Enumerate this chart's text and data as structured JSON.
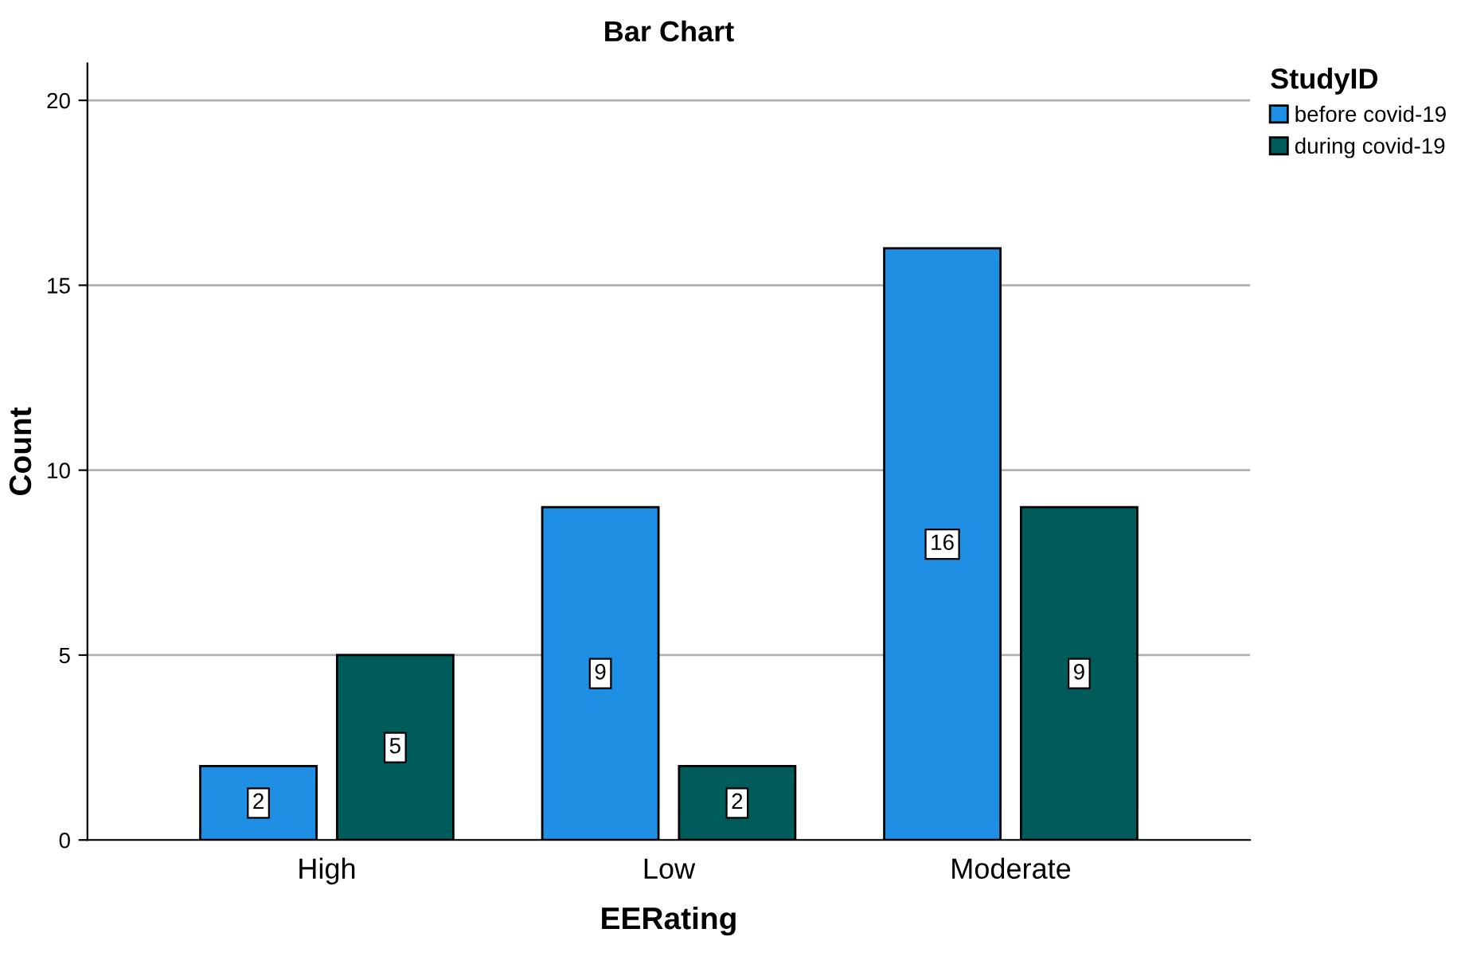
{
  "chart_data": {
    "type": "bar",
    "title": "Bar Chart",
    "xlabel": "EERating",
    "ylabel": "Count",
    "legend_title": "StudyID",
    "categories": [
      "High",
      "Low",
      "Moderate"
    ],
    "series": [
      {
        "name": "before covid-19",
        "color": "#1f8fe3",
        "values": [
          2,
          9,
          16
        ]
      },
      {
        "name": "during covid-19",
        "color": "#005b5b",
        "values": [
          5,
          2,
          9
        ]
      }
    ],
    "ylim": [
      0,
      21
    ],
    "yticks": [
      0,
      5,
      10,
      15,
      20
    ],
    "grid": "y",
    "legend": "top right",
    "data_labels": true
  }
}
